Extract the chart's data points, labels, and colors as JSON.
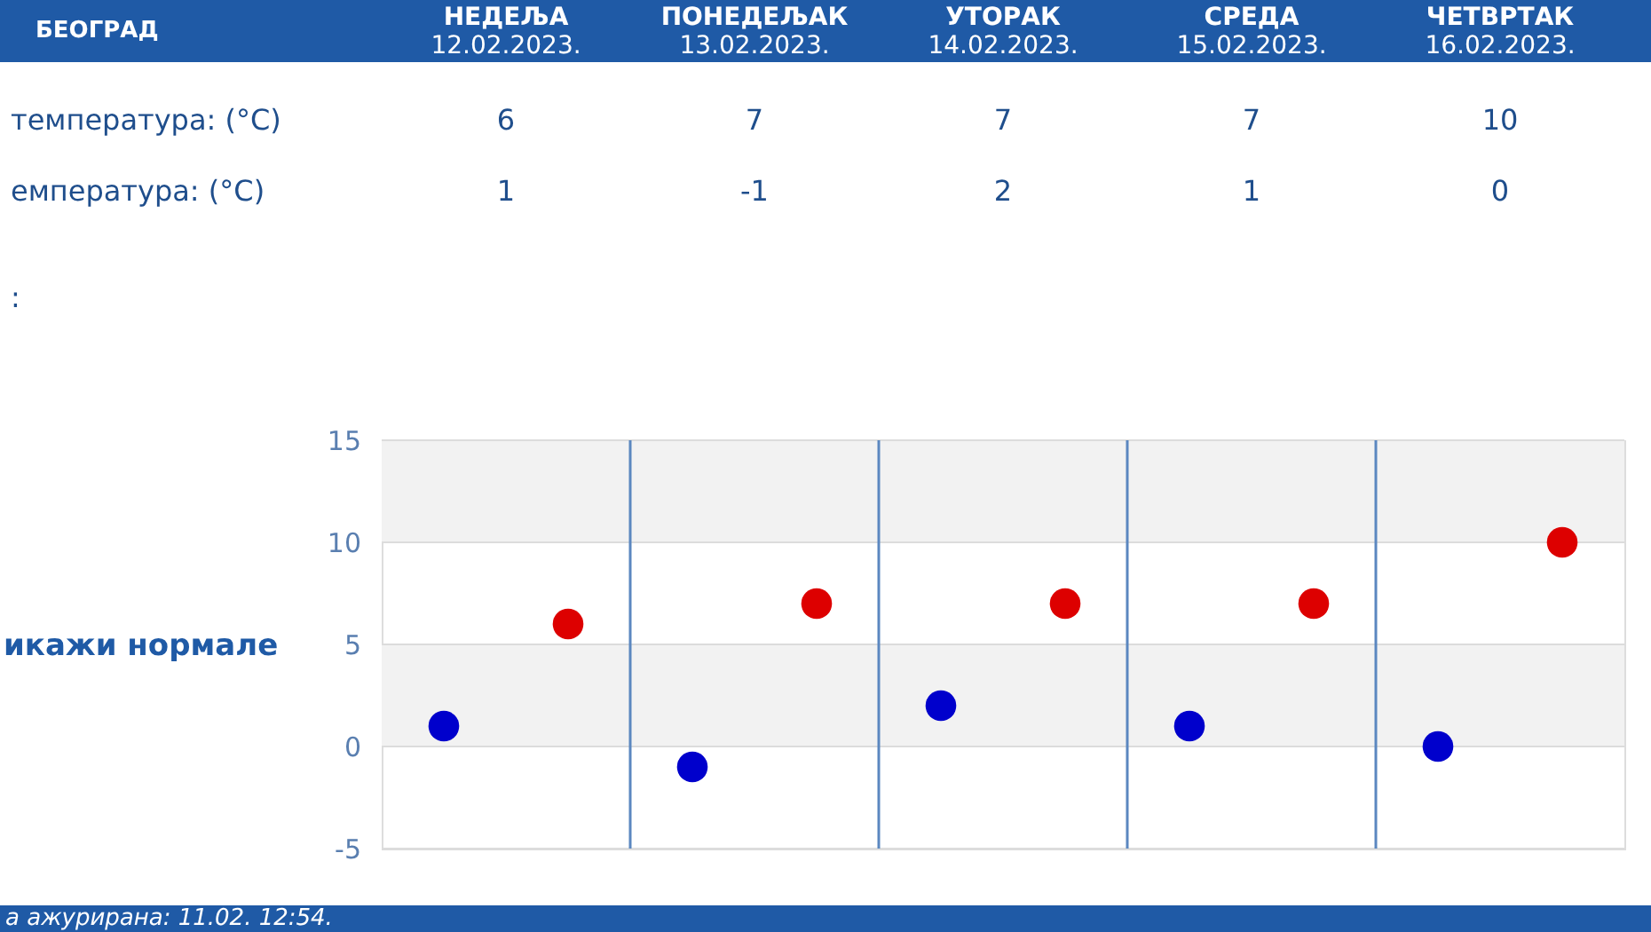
{
  "chart_data": {
    "type": "scatter",
    "title": "БЕОГРАД",
    "categories": [
      "НЕДЕЉА\n12.02.2023.",
      "ПОНЕДЕЉАК\n13.02.2023.",
      "УТОРАК\n14.02.2023.",
      "СРЕДА\n15.02.2023.",
      "ЧЕТВРТАК\n16.02.2023."
    ],
    "series": [
      {
        "color": "#dd0000",
        "values": [
          6,
          7,
          7,
          7,
          10
        ]
      },
      {
        "color": "#0000cc",
        "values": [
          1,
          -1,
          2,
          1,
          0
        ]
      }
    ],
    "ylim": [
      -5,
      15
    ],
    "yticks": [
      -5,
      0,
      5,
      10,
      15
    ],
    "grid": true,
    "marker": "circle",
    "data_labels": true,
    "bands": [
      {
        "axis": "y",
        "from": 10,
        "to": 15,
        "color": "#f2f2f2"
      },
      {
        "axis": "y",
        "from": 0,
        "to": 5,
        "color": "#f2f2f2"
      }
    ],
    "annotations": [
      "температура: (°C)",
      "емпература: (°C)",
      ":",
      "икажи нормале",
      "а ажурирана:  11.02. 12:54."
    ]
  }
}
